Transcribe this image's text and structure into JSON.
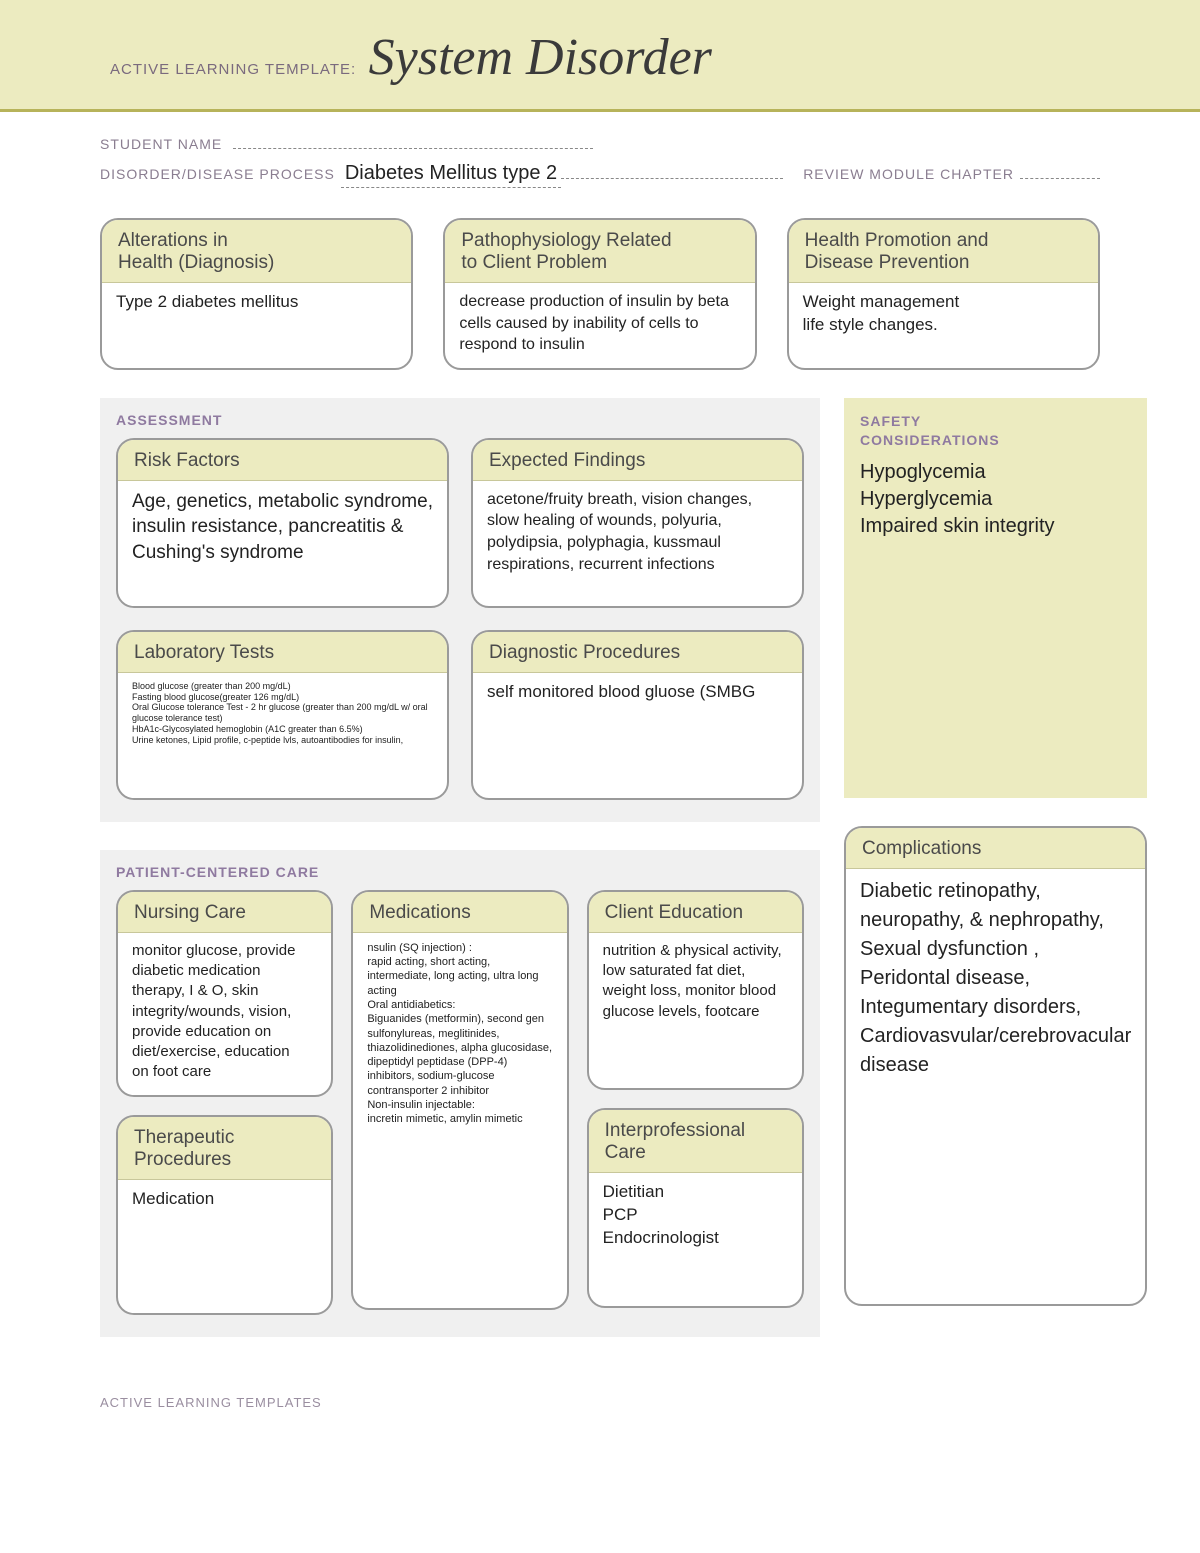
{
  "colors": {
    "banner_bg": "#ecebc0",
    "banner_rule": "#b7b35a",
    "section_bg": "#f0f0f0",
    "card_border": "#9a9a9a",
    "label_color": "#8a7d90"
  },
  "banner": {
    "pre": "ACTIVE LEARNING TEMPLATE:",
    "title": "System Disorder"
  },
  "meta": {
    "student_label": "STUDENT NAME",
    "disorder_label": "DISORDER/DISEASE PROCESS",
    "disorder_value": "Diabetes Mellitus type 2",
    "review_label": "REVIEW MODULE CHAPTER"
  },
  "top_cards": {
    "alterations": {
      "title": "Alterations in\nHealth (Diagnosis)",
      "body": "Type 2 diabetes mellitus"
    },
    "patho": {
      "title": "Pathophysiology Related\nto Client Problem",
      "body": "decrease production of insulin by beta cells caused by inability of cells to respond to insulin"
    },
    "promo": {
      "title": "Health Promotion and\nDisease Prevention",
      "body": "Weight management\nlife style changes."
    }
  },
  "assessment": {
    "section_title": "ASSESSMENT",
    "risk": {
      "title": "Risk Factors",
      "body": "Age, genetics, metabolic syndrome, insulin resistance, pancreatitis & Cushing's syndrome"
    },
    "findings": {
      "title": "Expected Findings",
      "body": "acetone/fruity breath, vision changes, slow healing of wounds, polyuria, polydipsia, polyphagia, kussmaul respirations, recurrent infections"
    },
    "labs": {
      "title": "Laboratory Tests",
      "body": "Blood glucose (greater than 200 mg/dL)\nFasting blood glucose(greater 126 mg/dL)\nOral Glucose tolerance Test - 2 hr glucose (greater than 200 mg/dL w/ oral glucose tolerance test)\nHbA1c-Glycosylated hemoglobin (A1C greater than 6.5%)\nUrine ketones, Lipid profile, c-peptide lvls, autoantibodies for insulin,"
    },
    "diag": {
      "title": "Diagnostic Procedures",
      "body": "self monitored blood gluose (SMBG"
    }
  },
  "safety": {
    "title": "SAFETY\nCONSIDERATIONS",
    "body": "Hypoglycemia\nHyperglycemia\nImpaired skin integrity"
  },
  "pcc": {
    "section_title": "PATIENT-CENTERED CARE",
    "nursing": {
      "title": "Nursing Care",
      "body": "monitor glucose, provide diabetic medication therapy, I & O, skin integrity/wounds, vision, provide education on diet/exercise, education\non foot care"
    },
    "therapeutic": {
      "title": "Therapeutic Procedures",
      "body": "Medication"
    },
    "meds": {
      "title": "Medications",
      "body": "nsulin (SQ injection) :\nrapid acting, short acting, intermediate, long acting, ultra long acting\nOral antidiabetics:\nBiguanides (metformin), second gen sulfonylureas, meglitinides, thiazolidinediones, alpha glucosidase, dipeptidyl peptidase (DPP-4) inhibitors, sodium-glucose contransporter 2 inhibitor\nNon-insulin injectable:\nincretin mimetic, amylin mimetic"
    },
    "edu": {
      "title": "Client Education",
      "body": "nutrition & physical activity, low saturated fat diet, weight loss, monitor blood glucose levels, footcare"
    },
    "inter": {
      "title": "Interprofessional Care",
      "body": "Dietitian\nPCP\nEndocrinologist"
    }
  },
  "complications": {
    "title": "Complications",
    "body": "Diabetic retinopathy, neuropathy, & nephropathy, Sexual dysfunction , Peridontal disease, Integumentary disorders, Cardiovasvular/cerebrovacular disease"
  },
  "footer": "ACTIVE LEARNING TEMPLATES"
}
